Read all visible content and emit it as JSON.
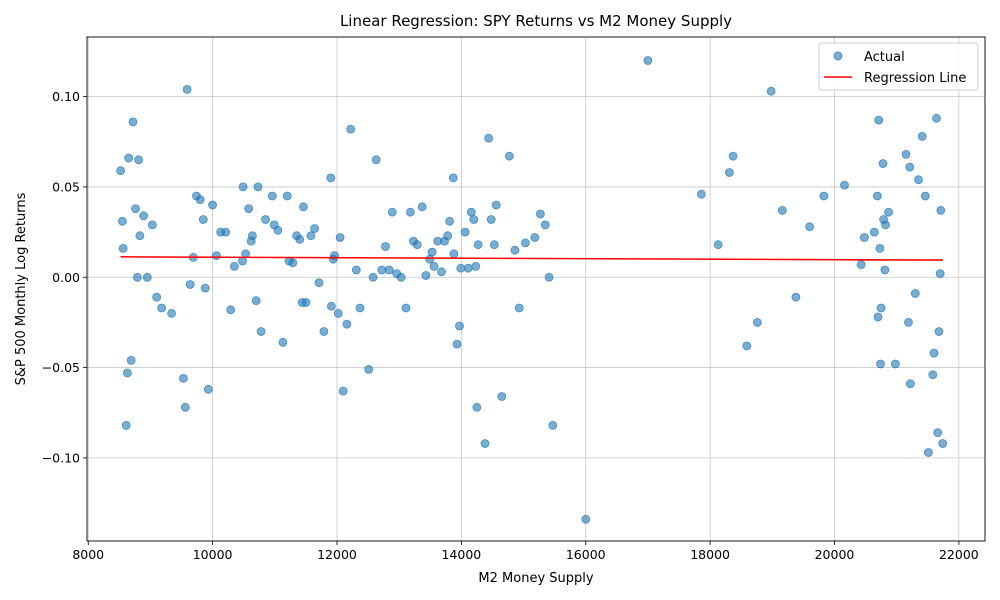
{
  "chart_data": {
    "type": "scatter",
    "title": "Linear Regression: SPY Returns vs M2 Money Supply",
    "xlabel": "M2 Money Supply",
    "ylabel": "S&P 500 Monthly Log Returns",
    "xlim": [
      7980,
      22420
    ],
    "ylim": [
      -0.146,
      0.133
    ],
    "xticks": [
      8000,
      10000,
      12000,
      14000,
      16000,
      18000,
      20000,
      22000
    ],
    "xtick_labels": [
      "8000",
      "10000",
      "12000",
      "14000",
      "16000",
      "18000",
      "20000",
      "22000"
    ],
    "yticks": [
      -0.1,
      -0.05,
      0.0,
      0.05,
      0.1
    ],
    "ytick_labels": [
      "−0.10",
      "−0.05",
      "0.00",
      "0.05",
      "0.10"
    ],
    "grid": true,
    "legend_position": "top-right",
    "colors": {
      "points": "#1f77b4",
      "regression": "#ff0000"
    },
    "series": [
      {
        "name": "Actual",
        "kind": "scatter",
        "points": [
          [
            8520,
            0.059
          ],
          [
            8550,
            0.031
          ],
          [
            8560,
            0.016
          ],
          [
            8610,
            -0.082
          ],
          [
            8630,
            -0.053
          ],
          [
            8650,
            0.066
          ],
          [
            8690,
            -0.046
          ],
          [
            8720,
            0.086
          ],
          [
            8760,
            0.038
          ],
          [
            8790,
            0.0
          ],
          [
            8810,
            0.065
          ],
          [
            8830,
            0.023
          ],
          [
            8890,
            0.034
          ],
          [
            8950,
            0.0
          ],
          [
            9030,
            0.029
          ],
          [
            9100,
            -0.011
          ],
          [
            9180,
            -0.017
          ],
          [
            9340,
            -0.02
          ],
          [
            9530,
            -0.056
          ],
          [
            9560,
            -0.072
          ],
          [
            9590,
            0.104
          ],
          [
            9640,
            -0.004
          ],
          [
            9690,
            0.011
          ],
          [
            9740,
            0.045
          ],
          [
            9800,
            0.043
          ],
          [
            9850,
            0.032
          ],
          [
            9880,
            -0.006
          ],
          [
            9930,
            -0.062
          ],
          [
            10000,
            0.04
          ],
          [
            10060,
            0.012
          ],
          [
            10130,
            0.025
          ],
          [
            10210,
            0.025
          ],
          [
            10290,
            -0.018
          ],
          [
            10350,
            0.006
          ],
          [
            10480,
            0.009
          ],
          [
            10490,
            0.05
          ],
          [
            10530,
            0.013
          ],
          [
            10580,
            0.038
          ],
          [
            10620,
            0.02
          ],
          [
            10640,
            0.023
          ],
          [
            10700,
            -0.013
          ],
          [
            10730,
            0.05
          ],
          [
            10780,
            -0.03
          ],
          [
            10850,
            0.032
          ],
          [
            10960,
            0.045
          ],
          [
            10990,
            0.029
          ],
          [
            11050,
            0.026
          ],
          [
            11130,
            -0.036
          ],
          [
            11200,
            0.045
          ],
          [
            11230,
            0.009
          ],
          [
            11290,
            0.008
          ],
          [
            11350,
            0.023
          ],
          [
            11400,
            0.021
          ],
          [
            11440,
            -0.014
          ],
          [
            11460,
            0.039
          ],
          [
            11500,
            -0.014
          ],
          [
            11580,
            0.023
          ],
          [
            11640,
            0.027
          ],
          [
            11710,
            -0.003
          ],
          [
            11790,
            -0.03
          ],
          [
            11900,
            0.055
          ],
          [
            11910,
            -0.016
          ],
          [
            11940,
            0.01
          ],
          [
            11960,
            0.012
          ],
          [
            12020,
            -0.02
          ],
          [
            12050,
            0.022
          ],
          [
            12100,
            -0.063
          ],
          [
            12160,
            -0.026
          ],
          [
            12220,
            0.082
          ],
          [
            12310,
            0.004
          ],
          [
            12370,
            -0.017
          ],
          [
            12510,
            -0.051
          ],
          [
            12580,
            0.0
          ],
          [
            12630,
            0.065
          ],
          [
            12720,
            0.004
          ],
          [
            12780,
            0.017
          ],
          [
            12840,
            0.004
          ],
          [
            12890,
            0.036
          ],
          [
            12960,
            0.002
          ],
          [
            13030,
            0.0
          ],
          [
            13110,
            -0.017
          ],
          [
            13180,
            0.036
          ],
          [
            13230,
            0.02
          ],
          [
            13290,
            0.018
          ],
          [
            13370,
            0.039
          ],
          [
            13430,
            0.001
          ],
          [
            13490,
            0.01
          ],
          [
            13530,
            0.014
          ],
          [
            13560,
            0.006
          ],
          [
            13620,
            0.02
          ],
          [
            13680,
            0.003
          ],
          [
            13730,
            0.02
          ],
          [
            13780,
            0.023
          ],
          [
            13810,
            0.031
          ],
          [
            13870,
            0.055
          ],
          [
            13880,
            0.013
          ],
          [
            13930,
            -0.037
          ],
          [
            13970,
            -0.027
          ],
          [
            13990,
            0.005
          ],
          [
            14060,
            0.025
          ],
          [
            14110,
            0.005
          ],
          [
            14160,
            0.036
          ],
          [
            14200,
            0.032
          ],
          [
            14230,
            0.006
          ],
          [
            14250,
            -0.072
          ],
          [
            14270,
            0.018
          ],
          [
            14380,
            -0.092
          ],
          [
            14440,
            0.077
          ],
          [
            14480,
            0.032
          ],
          [
            14530,
            0.018
          ],
          [
            14560,
            0.04
          ],
          [
            14650,
            -0.066
          ],
          [
            14770,
            0.067
          ],
          [
            14860,
            0.015
          ],
          [
            14930,
            -0.017
          ],
          [
            15030,
            0.019
          ],
          [
            15180,
            0.022
          ],
          [
            15270,
            0.035
          ],
          [
            15350,
            0.029
          ],
          [
            15410,
            0.0
          ],
          [
            15470,
            -0.082
          ],
          [
            16000,
            -0.134
          ],
          [
            17000,
            0.12
          ],
          [
            17860,
            0.046
          ],
          [
            18130,
            0.018
          ],
          [
            18310,
            0.058
          ],
          [
            18370,
            0.067
          ],
          [
            18590,
            -0.038
          ],
          [
            18760,
            -0.025
          ],
          [
            18980,
            0.103
          ],
          [
            19160,
            0.037
          ],
          [
            19380,
            -0.011
          ],
          [
            19600,
            0.028
          ],
          [
            19830,
            0.045
          ],
          [
            20160,
            0.051
          ],
          [
            20430,
            0.007
          ],
          [
            20480,
            0.022
          ],
          [
            20640,
            0.025
          ],
          [
            20690,
            0.045
          ],
          [
            20700,
            -0.022
          ],
          [
            20710,
            0.087
          ],
          [
            20730,
            0.016
          ],
          [
            20740,
            -0.048
          ],
          [
            20750,
            -0.017
          ],
          [
            20780,
            0.063
          ],
          [
            20790,
            0.032
          ],
          [
            20810,
            0.004
          ],
          [
            20820,
            0.029
          ],
          [
            20870,
            0.036
          ],
          [
            20980,
            -0.048
          ],
          [
            21150,
            0.068
          ],
          [
            21190,
            -0.025
          ],
          [
            21210,
            0.061
          ],
          [
            21220,
            -0.059
          ],
          [
            21300,
            -0.009
          ],
          [
            21350,
            0.054
          ],
          [
            21410,
            0.078
          ],
          [
            21460,
            0.045
          ],
          [
            21510,
            -0.097
          ],
          [
            21580,
            -0.054
          ],
          [
            21600,
            -0.042
          ],
          [
            21640,
            0.088
          ],
          [
            21660,
            -0.086
          ],
          [
            21680,
            -0.03
          ],
          [
            21700,
            0.002
          ],
          [
            21710,
            0.037
          ],
          [
            21740,
            -0.092
          ]
        ]
      },
      {
        "name": "Regression Line",
        "kind": "line",
        "x": [
          8520,
          21740
        ],
        "y": [
          0.0113,
          0.0095
        ]
      }
    ]
  }
}
